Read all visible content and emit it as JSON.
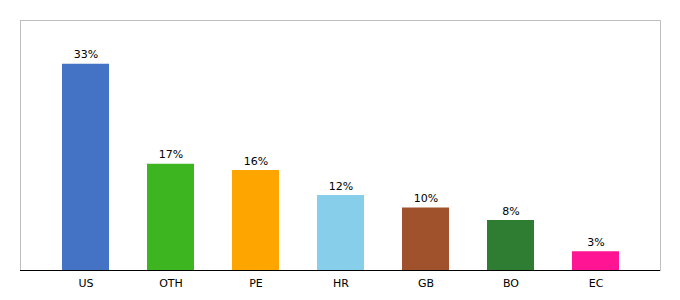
{
  "chart_data": {
    "type": "bar",
    "categories": [
      "US",
      "OTH",
      "PE",
      "HR",
      "GB",
      "BO",
      "EC"
    ],
    "values": [
      33,
      17,
      16,
      12,
      10,
      8,
      3
    ],
    "value_labels": [
      "33%",
      "17%",
      "16%",
      "12%",
      "10%",
      "8%",
      "3%"
    ],
    "colors": [
      "#4472C4",
      "#3CB521",
      "#FFA500",
      "#87CEEB",
      "#A0522D",
      "#2E7D32",
      "#FF1493"
    ],
    "ylim": [
      0,
      40
    ],
    "data_labels": true,
    "tick_labels": "x",
    "grid": false
  }
}
